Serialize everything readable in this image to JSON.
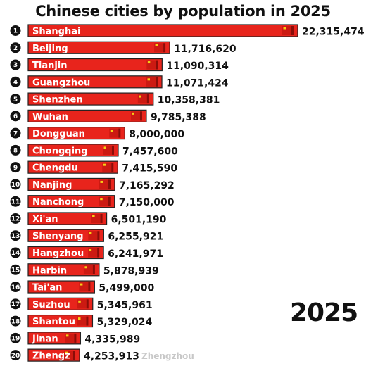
{
  "chart_data": {
    "type": "bar",
    "orientation": "horizontal",
    "title": "Chinese cities by population in 2025",
    "year": "2025",
    "categories": [
      "Shanghai",
      "Beijing",
      "Tianjin",
      "Guangzhou",
      "Shenzhen",
      "Wuhan",
      "Dongguan",
      "Chongqing",
      "Chengdu",
      "Nanjing",
      "Nanchong",
      "Xi'an",
      "Shenyang",
      "Hangzhou",
      "Harbin",
      "Tai'an",
      "Suzhou",
      "Shantou",
      "Jinan",
      "Zhengz"
    ],
    "ranks": [
      "1",
      "2",
      "3",
      "4",
      "5",
      "6",
      "7",
      "8",
      "9",
      "10",
      "11",
      "12",
      "13",
      "14",
      "15",
      "16",
      "17",
      "18",
      "19",
      "20"
    ],
    "values": [
      22315474,
      11716620,
      11090314,
      11071424,
      10358381,
      9785388,
      8000000,
      7457600,
      7415590,
      7165292,
      7150000,
      6501190,
      6255921,
      6241971,
      5878939,
      5499000,
      5345961,
      5329024,
      4335989,
      4253913
    ],
    "value_labels": [
      "22,315,474",
      "11,716,620",
      "11,090,314",
      "11,071,424",
      "10,358,381",
      "9,785,388",
      "8,000,000",
      "7,457,600",
      "7,415,590",
      "7,165,292",
      "7,150,000",
      "6,501,190",
      "6,255,921",
      "6,241,971",
      "5,878,939",
      "5,499,000",
      "5,345,961",
      "5,329,024",
      "4,335,989",
      "4,253,913"
    ],
    "entering_label": "Zhengzhou",
    "bar_color": "#e8241c",
    "flag_color": "#cc1a12",
    "xlim": [
      0,
      22315474
    ],
    "grid": false,
    "legend": "none"
  }
}
